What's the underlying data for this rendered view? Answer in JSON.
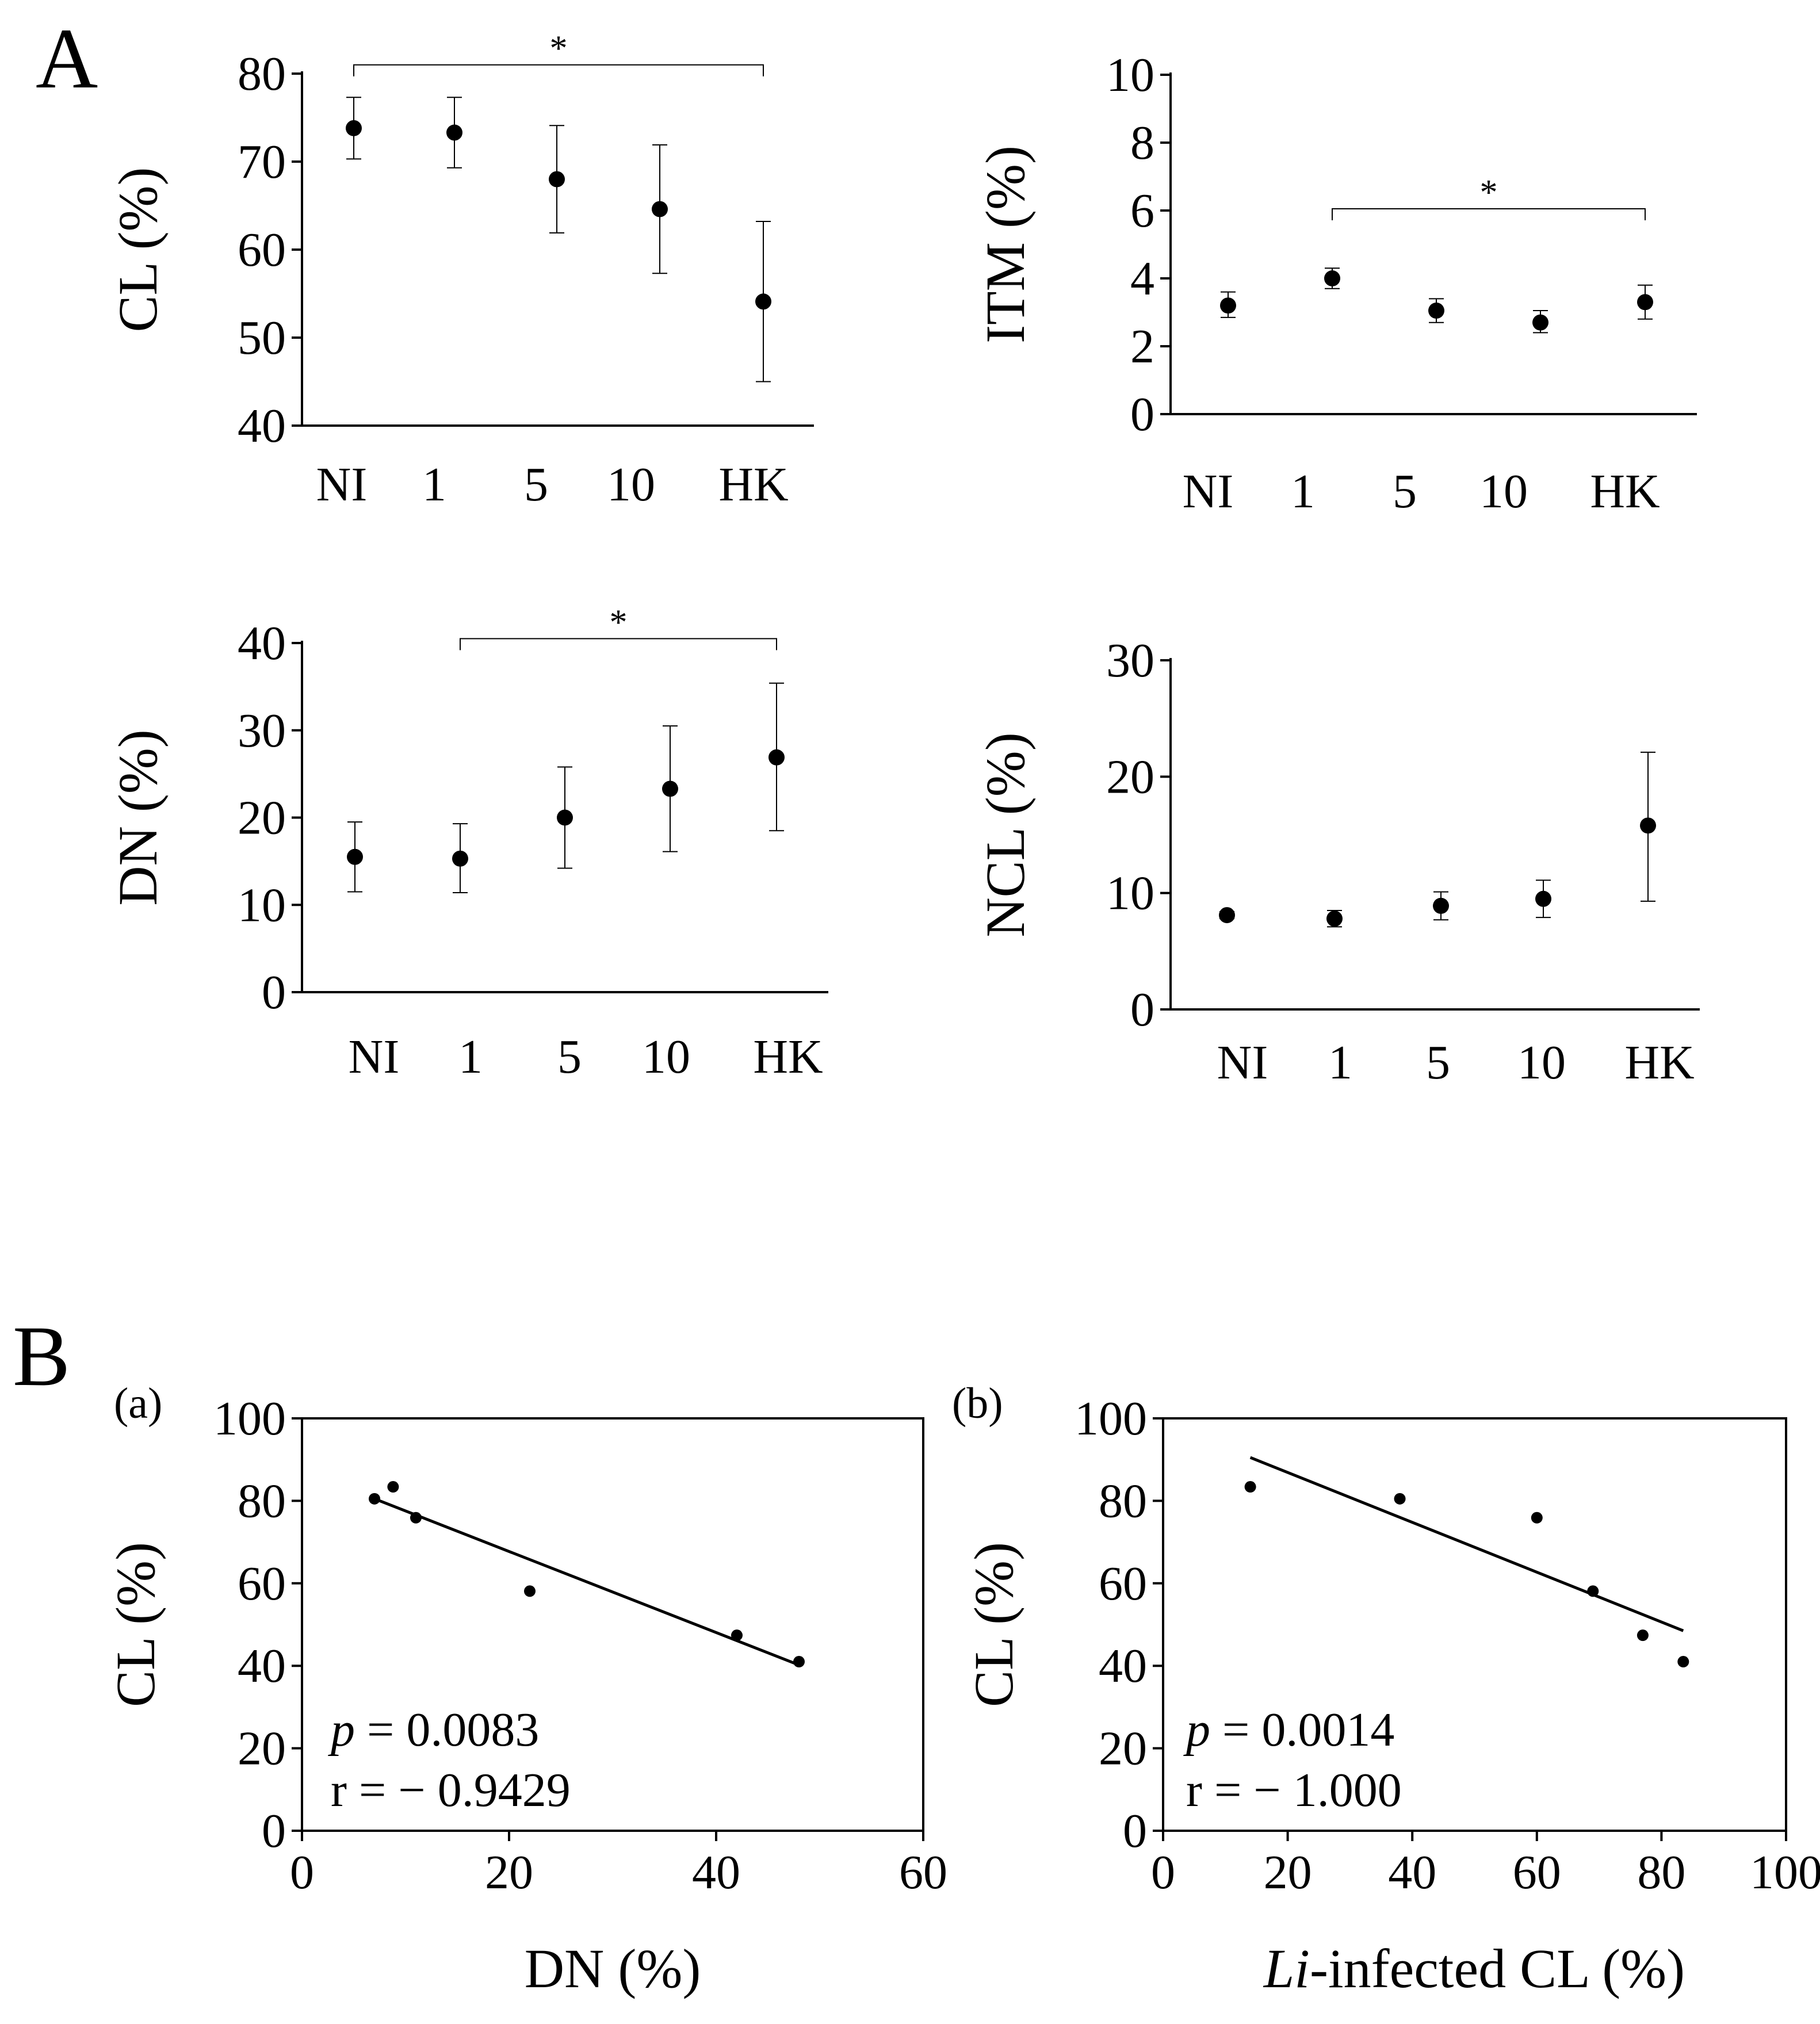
{
  "figure": {
    "panel_A_label": "A",
    "panel_B_label": "B",
    "sub_a_label": "(a)",
    "sub_b_label": "(b)"
  },
  "chart_data": [
    {
      "id": "cl",
      "type": "scatter",
      "errorbars": true,
      "title": "",
      "xlabel": "",
      "ylabel": "CL (%)",
      "categories": [
        "NI",
        "1",
        "5",
        "10",
        "HK"
      ],
      "ylim": [
        40,
        80
      ],
      "yticks": [
        40,
        50,
        60,
        70,
        80
      ],
      "ytick_labels": [
        "40",
        "50",
        "60",
        "70",
        "80"
      ],
      "values": [
        73.8,
        73.3,
        68.0,
        64.6,
        54.1
      ],
      "err_low": [
        70.3,
        69.3,
        61.9,
        57.3,
        45.0
      ],
      "err_high": [
        77.3,
        77.3,
        74.1,
        71.9,
        63.2
      ],
      "significance": {
        "from": 0,
        "to": 4,
        "label": "*",
        "level": 81
      }
    },
    {
      "id": "itm",
      "type": "scatter",
      "errorbars": true,
      "title": "",
      "xlabel": "",
      "ylabel": "ITM (%)",
      "categories": [
        "NI",
        "1",
        "5",
        "10",
        "HK"
      ],
      "ylim": [
        0,
        10
      ],
      "yticks": [
        0,
        2,
        4,
        6,
        8,
        10
      ],
      "ytick_labels": [
        "0",
        "2",
        "4",
        "6",
        "8",
        "10"
      ],
      "values": [
        3.2,
        4.0,
        3.05,
        2.7,
        3.3
      ],
      "err_low": [
        2.85,
        3.7,
        2.7,
        2.4,
        2.8
      ],
      "err_high": [
        3.6,
        4.3,
        3.4,
        3.05,
        3.8
      ],
      "significance": {
        "from": 1,
        "to": 4,
        "label": "*",
        "level": 6.05
      }
    },
    {
      "id": "dn",
      "type": "scatter",
      "errorbars": true,
      "title": "",
      "xlabel": "",
      "ylabel": "DN (%)",
      "categories": [
        "NI",
        "1",
        "5",
        "10",
        "HK"
      ],
      "ylim": [
        0,
        40
      ],
      "yticks": [
        0,
        10,
        20,
        30,
        40
      ],
      "ytick_labels": [
        "0",
        "10",
        "20",
        "30",
        "40"
      ],
      "values": [
        15.5,
        15.3,
        20.0,
        23.3,
        26.9
      ],
      "err_low": [
        11.5,
        11.4,
        14.2,
        16.1,
        18.5
      ],
      "err_high": [
        19.5,
        19.3,
        25.8,
        30.5,
        35.4
      ],
      "significance": {
        "from": 1,
        "to": 4,
        "label": "*",
        "level": 40.5
      }
    },
    {
      "id": "ncl",
      "type": "scatter",
      "errorbars": true,
      "title": "",
      "xlabel": "",
      "ylabel": "NCL (%)",
      "categories": [
        "NI",
        "1",
        "5",
        "10",
        "HK"
      ],
      "ylim": [
        0,
        30
      ],
      "yticks": [
        0,
        10,
        20,
        30
      ],
      "ytick_labels": [
        "0",
        "10",
        "20",
        "30"
      ],
      "values": [
        8.1,
        7.8,
        8.9,
        9.5,
        15.8
      ],
      "err_low": [
        7.8,
        7.1,
        7.7,
        7.9,
        9.3
      ],
      "err_high": [
        8.4,
        8.5,
        10.1,
        11.1,
        22.1
      ]
    },
    {
      "id": "scatter_a",
      "type": "scatter",
      "regression": true,
      "title": "",
      "xlabel": "DN (%)",
      "ylabel": "CL (%)",
      "xlim": [
        0,
        60
      ],
      "ylim": [
        0,
        100
      ],
      "xticks": [
        0,
        20,
        40,
        60
      ],
      "xtick_labels": [
        "0",
        "20",
        "40",
        "60"
      ],
      "yticks": [
        0,
        20,
        40,
        60,
        80,
        100
      ],
      "ytick_labels": [
        "0",
        "20",
        "40",
        "60",
        "80",
        "100"
      ],
      "x": [
        7,
        8.8,
        11,
        22,
        42,
        48
      ],
      "y": [
        80.5,
        83.4,
        75.9,
        58.1,
        47.4,
        41.0
      ],
      "fit_line": {
        "x": [
          7,
          48
        ],
        "y": [
          80.5,
          40.2
        ]
      },
      "p_symbol": "p",
      "p_text": " = 0.0083",
      "r_text": "r = − 0.9429"
    },
    {
      "id": "scatter_b",
      "type": "scatter",
      "regression": true,
      "title": "",
      "xlabel_italic": "Li",
      "xlabel_rest": "-infected CL (%)",
      "ylabel": "CL (%)",
      "xlim": [
        0,
        100
      ],
      "ylim": [
        0,
        100
      ],
      "xticks": [
        0,
        20,
        40,
        60,
        80,
        100
      ],
      "xtick_labels": [
        "0",
        "20",
        "40",
        "60",
        "80",
        "100"
      ],
      "yticks": [
        0,
        20,
        40,
        60,
        80,
        100
      ],
      "ytick_labels": [
        "0",
        "20",
        "40",
        "60",
        "80",
        "100"
      ],
      "x": [
        14,
        38,
        60,
        69,
        77,
        83.5
      ],
      "y": [
        83.4,
        80.5,
        75.9,
        58.1,
        47.4,
        41.0
      ],
      "fit_line": {
        "x": [
          14,
          83.5
        ],
        "y": [
          90.5,
          48.5
        ]
      },
      "p_symbol": "p",
      "p_text": " = 0.0014",
      "r_text": "r = − 1.000"
    }
  ]
}
